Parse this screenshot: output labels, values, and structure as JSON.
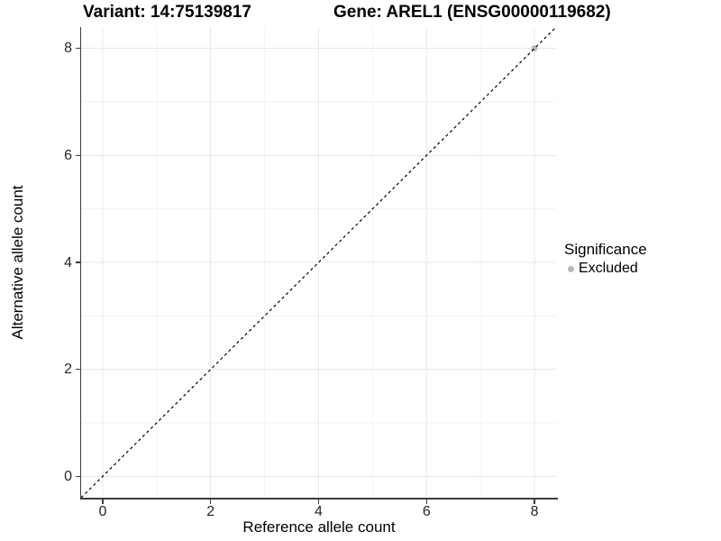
{
  "title": {
    "variant": "Variant: 14:75139817",
    "gene": "Gene: AREL1 (ENSG00000119682)"
  },
  "chart_data": {
    "type": "scatter",
    "xlabel": "Reference allele count",
    "ylabel": "Alternative allele count",
    "xlim": [
      -0.4,
      8.4
    ],
    "ylim": [
      -0.4,
      8.4
    ],
    "xticks": [
      0,
      2,
      4,
      6,
      8
    ],
    "yticks": [
      0,
      2,
      4,
      6,
      8
    ],
    "x_minor_ticks": [
      1,
      3,
      5,
      7
    ],
    "y_minor_ticks": [
      1,
      3,
      5,
      7
    ],
    "grid": "major+minor",
    "identity_line": {
      "style": "dashed",
      "from": [
        -0.4,
        -0.4
      ],
      "to": [
        8.4,
        8.4
      ],
      "color": "#000000"
    },
    "points": [
      {
        "x": 8,
        "y": 8,
        "significance": "Excluded"
      }
    ],
    "legend": {
      "title": "Significance",
      "position": "right",
      "items": [
        {
          "label": "Excluded",
          "color": "#b9b9b9"
        }
      ]
    }
  },
  "colors": {
    "background": "#ffffff",
    "grid_major": "#e8e8e8",
    "grid_minor": "#f3f3f3",
    "axis_line": "#3c3c3c",
    "tick_label": "#262626",
    "point_excluded": "#b9b9b9"
  }
}
